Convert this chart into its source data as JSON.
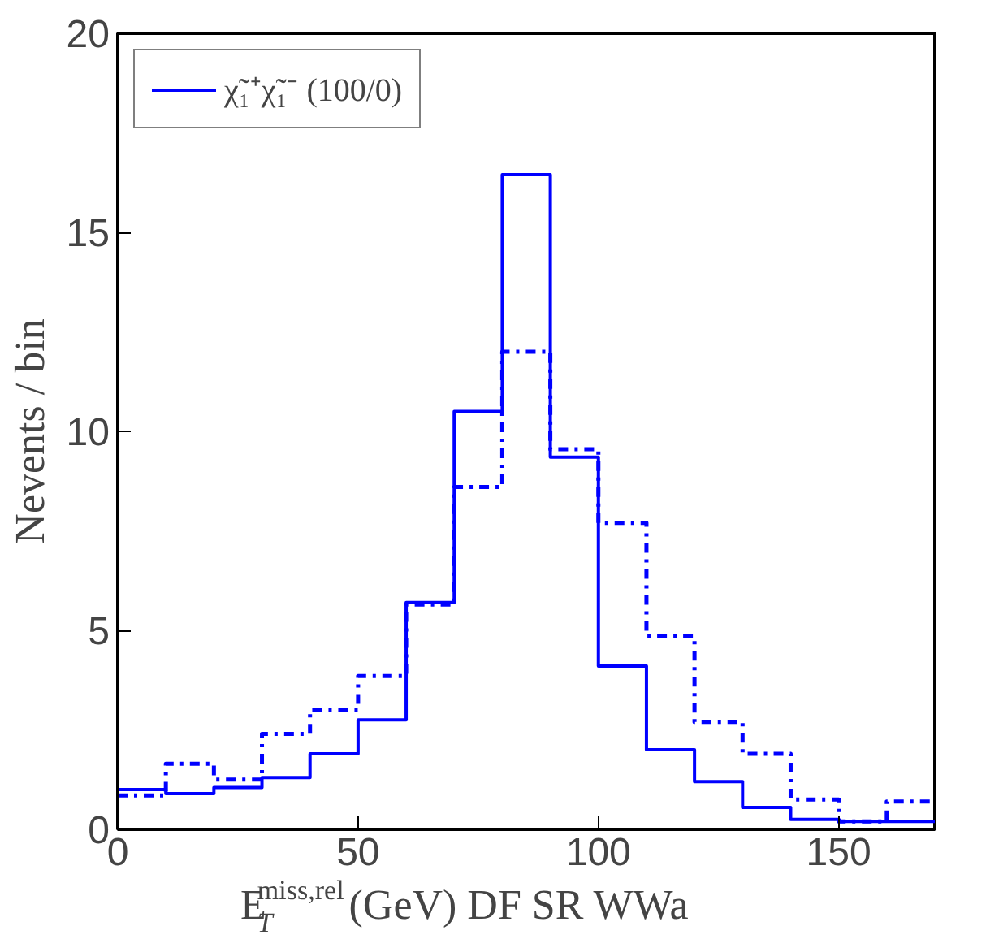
{
  "chart_data": {
    "type": "histogram",
    "xlabel": "E$^{miss,rel}$$_{T}$ (GeV) DF SR WWa",
    "ylabel": "Nevents / bin",
    "bins": [
      0,
      10,
      20,
      30,
      40,
      50,
      60,
      70,
      80,
      90,
      100,
      110,
      120,
      130,
      140,
      150,
      160,
      170
    ],
    "series": [
      {
        "name": "χ̃₁⁺χ̃₁⁻ (100/0)",
        "color": "#0000ff",
        "line_style": "solid",
        "values": [
          1.0,
          0.9,
          1.05,
          1.3,
          1.9,
          2.75,
          5.7,
          10.5,
          16.45,
          9.35,
          4.1,
          2.0,
          1.2,
          0.55,
          0.25,
          0.2,
          0.2
        ]
      },
      {
        "color": "#0000ff",
        "line_style": "dashdot",
        "values": [
          0.85,
          1.65,
          1.25,
          2.4,
          3.0,
          3.85,
          5.65,
          8.6,
          12.0,
          9.55,
          7.7,
          4.85,
          2.7,
          1.9,
          0.75,
          0.2,
          0.7
        ]
      }
    ],
    "xlim": [
      0,
      170
    ],
    "ylim": [
      0,
      20
    ],
    "xticks": [
      0,
      50,
      100,
      150
    ],
    "yticks": [
      0,
      5,
      10,
      15,
      20
    ],
    "legend": "top left"
  }
}
